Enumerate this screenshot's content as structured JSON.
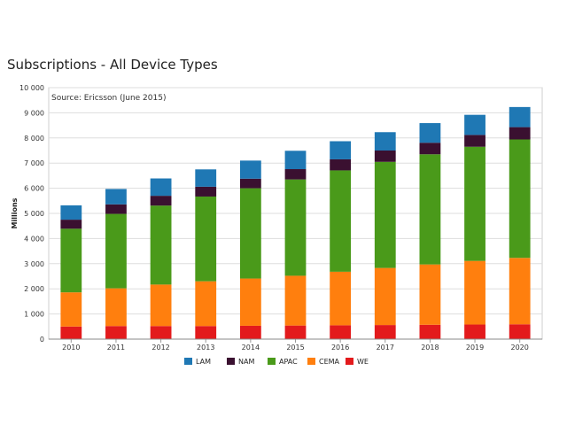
{
  "chart_data": {
    "type": "bar",
    "stacked": true,
    "title": "Subscriptions - All Device Types",
    "subtitle": "Source: Ericsson (June 2015)",
    "xlabel": "",
    "ylabel": "Millions",
    "ylim": [
      0,
      10000
    ],
    "yticks": [
      "0",
      "1 000",
      "2 000",
      "3 000",
      "4 000",
      "5 000",
      "6 000",
      "7 000",
      "8 000",
      "9 000",
      "10 000"
    ],
    "grid": true,
    "legend_position": "bottom",
    "categories": [
      "2010",
      "2011",
      "2012",
      "2013",
      "2014",
      "2015",
      "2016",
      "2017",
      "2018",
      "2019",
      "2020"
    ],
    "series": [
      {
        "name": "WE",
        "color": "#e31a1c",
        "values": [
          500,
          520,
          520,
          520,
          530,
          540,
          550,
          560,
          570,
          580,
          590
        ]
      },
      {
        "name": "CEMA",
        "color": "#ff7f0e",
        "values": [
          1360,
          1500,
          1650,
          1780,
          1880,
          1980,
          2130,
          2270,
          2400,
          2530,
          2640
        ]
      },
      {
        "name": "APAC",
        "color": "#4a9a1a",
        "values": [
          2530,
          2960,
          3140,
          3370,
          3590,
          3830,
          4030,
          4220,
          4380,
          4540,
          4710
        ]
      },
      {
        "name": "NAM",
        "color": "#3a1030",
        "values": [
          360,
          380,
          390,
          390,
          380,
          410,
          440,
          450,
          460,
          470,
          490
        ]
      },
      {
        "name": "LAM",
        "color": "#1f78b4",
        "values": [
          570,
          610,
          690,
          690,
          720,
          730,
          720,
          730,
          780,
          800,
          800
        ]
      }
    ],
    "legend_order": [
      "LAM",
      "NAM",
      "APAC",
      "CEMA",
      "WE"
    ]
  }
}
